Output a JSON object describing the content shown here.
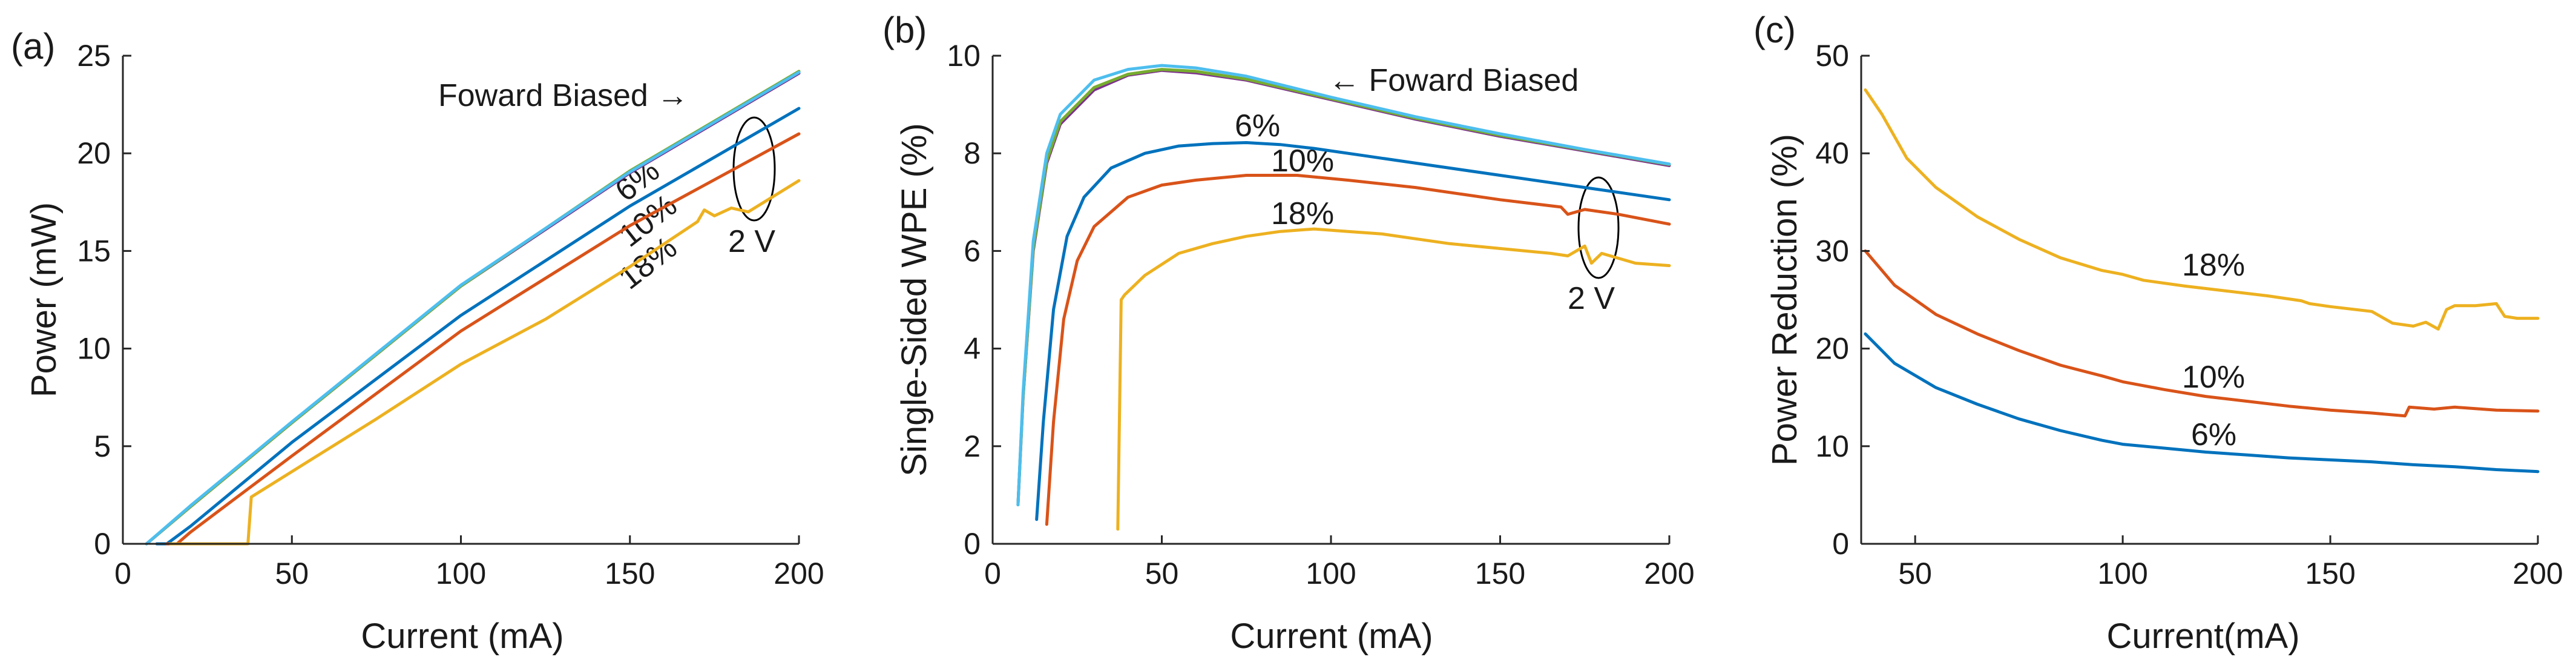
{
  "colors": {
    "blue": "#0072bd",
    "red": "#d95319",
    "yellow": "#edb120",
    "green": "#77ac30",
    "cyan": "#4dbeee",
    "purple": "#7e2f8e",
    "axis": "#262626"
  },
  "chart_data": [
    {
      "panel": "(a)",
      "type": "line",
      "title": "",
      "xlabel": "Current (mA)",
      "ylabel": "Power (mW)",
      "xlim": [
        0,
        200
      ],
      "ylim": [
        0,
        25
      ],
      "xticks": [
        0,
        50,
        100,
        150,
        200
      ],
      "yticks": [
        0,
        5,
        10,
        15,
        20,
        25
      ],
      "series": [
        {
          "name": "Foward Biased (1)",
          "color": "purple",
          "x": [
            7,
            20,
            50,
            100,
            150,
            200
          ],
          "y": [
            0,
            1.9,
            6.2,
            13.2,
            19.0,
            24.1
          ]
        },
        {
          "name": "Foward Biased (2)",
          "color": "green",
          "x": [
            7,
            20,
            50,
            100,
            150,
            200
          ],
          "y": [
            0,
            1.9,
            6.2,
            13.2,
            19.1,
            24.2
          ]
        },
        {
          "name": "Foward Biased (3)",
          "color": "cyan",
          "x": [
            7,
            20,
            50,
            100,
            150,
            200
          ],
          "y": [
            0,
            1.95,
            6.25,
            13.25,
            19.05,
            24.15
          ]
        },
        {
          "name": "6%",
          "color": "blue",
          "x": [
            10,
            13,
            20,
            50,
            100,
            150,
            200
          ],
          "y": [
            0,
            0,
            0.9,
            5.2,
            11.7,
            17.3,
            22.3
          ]
        },
        {
          "name": "10%",
          "color": "red",
          "x": [
            13,
            16,
            20,
            50,
            100,
            150,
            200
          ],
          "y": [
            0,
            0,
            0.6,
            4.5,
            10.9,
            16.3,
            21.0
          ]
        },
        {
          "name": "18%",
          "color": "yellow",
          "x": [
            14,
            37,
            37.5,
            38,
            50,
            75,
            100,
            125,
            150,
            170,
            172,
            175,
            180,
            185,
            200
          ],
          "y": [
            0,
            0,
            1.2,
            2.4,
            3.7,
            6.4,
            9.2,
            11.5,
            14.2,
            16.5,
            17.1,
            16.8,
            17.2,
            17.0,
            18.6
          ]
        }
      ],
      "annotations": [
        {
          "text": "Foward Biased →"
        },
        {
          "text": "6%"
        },
        {
          "text": "10%"
        },
        {
          "text": "18%"
        },
        {
          "text": "2 V"
        }
      ]
    },
    {
      "panel": "(b)",
      "type": "line",
      "title": "",
      "xlabel": "Current (mA)",
      "ylabel": "Single-Sided WPE (%)",
      "xlim": [
        0,
        200
      ],
      "ylim": [
        0,
        10
      ],
      "xticks": [
        0,
        50,
        100,
        150,
        200
      ],
      "yticks": [
        0,
        2,
        4,
        6,
        8,
        10
      ],
      "series": [
        {
          "name": "Foward Biased (1)",
          "color": "purple",
          "x": [
            7.5,
            9,
            12,
            16,
            20,
            30,
            40,
            50,
            60,
            75,
            100,
            125,
            150,
            175,
            200
          ],
          "y": [
            0.8,
            3.0,
            6.0,
            7.8,
            8.6,
            9.3,
            9.6,
            9.7,
            9.65,
            9.5,
            9.1,
            8.7,
            8.35,
            8.05,
            7.75
          ]
        },
        {
          "name": "Foward Biased (2)",
          "color": "green",
          "x": [
            7.5,
            9,
            12,
            16,
            20,
            30,
            40,
            50,
            60,
            75,
            100,
            125,
            150,
            175,
            200
          ],
          "y": [
            0.8,
            3.0,
            6.05,
            7.85,
            8.65,
            9.35,
            9.62,
            9.72,
            9.68,
            9.52,
            9.12,
            8.72,
            8.37,
            8.07,
            7.77
          ]
        },
        {
          "name": "Foward Biased (3)",
          "color": "cyan",
          "x": [
            7.5,
            9,
            12,
            16,
            20,
            30,
            40,
            50,
            60,
            75,
            100,
            125,
            150,
            175,
            200
          ],
          "y": [
            0.8,
            3.1,
            6.2,
            8.0,
            8.8,
            9.5,
            9.72,
            9.8,
            9.75,
            9.58,
            9.15,
            8.75,
            8.4,
            8.08,
            7.78
          ]
        },
        {
          "name": "6%",
          "color": "blue",
          "x": [
            13,
            15,
            18,
            22,
            27,
            35,
            45,
            55,
            65,
            75,
            85,
            95,
            110,
            130,
            150,
            175,
            200
          ],
          "y": [
            0.5,
            2.5,
            4.8,
            6.3,
            7.1,
            7.7,
            8.0,
            8.15,
            8.2,
            8.22,
            8.18,
            8.1,
            7.95,
            7.75,
            7.55,
            7.3,
            7.05
          ]
        },
        {
          "name": "10%",
          "color": "red",
          "x": [
            16,
            18,
            21,
            25,
            30,
            40,
            50,
            60,
            75,
            90,
            105,
            125,
            150,
            168,
            170,
            175,
            185,
            200
          ],
          "y": [
            0.4,
            2.5,
            4.6,
            5.8,
            6.5,
            7.1,
            7.35,
            7.45,
            7.55,
            7.55,
            7.45,
            7.3,
            7.05,
            6.9,
            6.75,
            6.85,
            6.75,
            6.55
          ]
        },
        {
          "name": "18%",
          "color": "yellow",
          "x": [
            37,
            38,
            39,
            45,
            55,
            65,
            75,
            85,
            95,
            105,
            115,
            125,
            135,
            150,
            165,
            170,
            175,
            177,
            180,
            185,
            190,
            200
          ],
          "y": [
            0.3,
            5.0,
            5.1,
            5.5,
            5.95,
            6.15,
            6.3,
            6.4,
            6.45,
            6.4,
            6.35,
            6.25,
            6.15,
            6.05,
            5.95,
            5.9,
            6.1,
            5.75,
            5.95,
            5.85,
            5.75,
            5.7
          ]
        }
      ],
      "annotations": [
        {
          "text": "← Foward Biased"
        },
        {
          "text": "6%"
        },
        {
          "text": "10%"
        },
        {
          "text": "18%"
        },
        {
          "text": "2 V"
        }
      ]
    },
    {
      "panel": "(c)",
      "type": "line",
      "title": "",
      "xlabel": "Current(mA)",
      "ylabel": "Power Reduction (%)",
      "xlim": [
        37,
        200
      ],
      "ylim": [
        0,
        50
      ],
      "xticks": [
        50,
        100,
        150,
        200
      ],
      "yticks": [
        0,
        10,
        20,
        30,
        40,
        50
      ],
      "series": [
        {
          "name": "6%",
          "color": "blue",
          "x": [
            38,
            45,
            55,
            65,
            75,
            85,
            95,
            100,
            110,
            120,
            130,
            140,
            150,
            160,
            170,
            180,
            190,
            200
          ],
          "y": [
            21.5,
            18.5,
            16.0,
            14.3,
            12.8,
            11.6,
            10.6,
            10.2,
            9.8,
            9.4,
            9.1,
            8.8,
            8.6,
            8.4,
            8.1,
            7.9,
            7.6,
            7.4
          ]
        },
        {
          "name": "10%",
          "color": "red",
          "x": [
            38,
            45,
            55,
            65,
            75,
            85,
            95,
            100,
            110,
            120,
            130,
            140,
            150,
            160,
            168,
            169,
            175,
            180,
            190,
            200
          ],
          "y": [
            30.0,
            26.5,
            23.5,
            21.5,
            19.8,
            18.3,
            17.2,
            16.6,
            15.8,
            15.1,
            14.6,
            14.1,
            13.7,
            13.4,
            13.1,
            14.0,
            13.8,
            14.0,
            13.7,
            13.6
          ]
        },
        {
          "name": "18%",
          "color": "yellow",
          "x": [
            38,
            42,
            48,
            55,
            65,
            75,
            85,
            95,
            100,
            105,
            115,
            125,
            135,
            143,
            145,
            150,
            160,
            165,
            170,
            173,
            176,
            178,
            180,
            185,
            190,
            192,
            195,
            200
          ],
          "y": [
            46.5,
            44.0,
            39.5,
            36.5,
            33.5,
            31.2,
            29.3,
            28.0,
            27.6,
            27.0,
            26.4,
            25.9,
            25.4,
            24.9,
            24.6,
            24.3,
            23.8,
            22.6,
            22.3,
            22.7,
            22.0,
            24.0,
            24.4,
            24.4,
            24.6,
            23.3,
            23.1,
            23.1
          ]
        }
      ],
      "annotations": [
        {
          "text": "18%"
        },
        {
          "text": "10%"
        },
        {
          "text": "6%"
        }
      ]
    }
  ]
}
